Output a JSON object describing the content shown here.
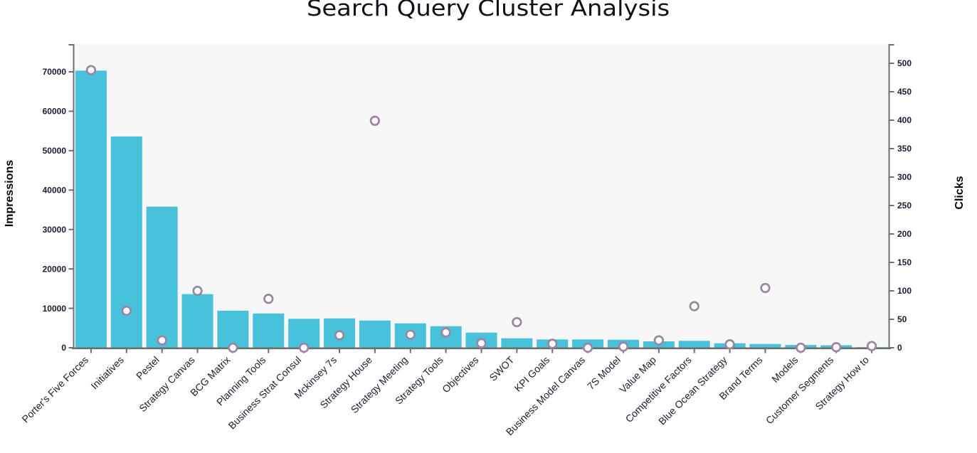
{
  "title": "Search Query Cluster Analysis",
  "colors": {
    "bar": "#48c1da",
    "marker_stroke": "#9d85a2",
    "marker_fill": "#ffffff",
    "plot_bg": "#f7f7f7",
    "axis": "#6f6f6f",
    "tick_label": "#1c1c30"
  },
  "chart_data": {
    "type": "bar",
    "title": "Search Query Cluster Analysis",
    "categories": [
      "Porter's Five Forces",
      "Initiatives",
      "Pestel",
      "Strategy Canvas",
      "BCG Matrix",
      "Planning Tools",
      "Business Strat Consul",
      "Mckinsey 7s",
      "Strategy House",
      "Strategy Meeting",
      "Strategy Tools",
      "Objectives",
      "SWOT",
      "KPI Goals",
      "Business Model Canvas",
      "7S Model",
      "Value Map",
      "Competitive Factors",
      "Blue Ocean Strategy",
      "Brand Terms",
      "Models",
      "Customer Segments",
      "Strategy How to"
    ],
    "series": [
      {
        "name": "Impressions",
        "type": "bar",
        "axis": "left",
        "values": [
          70300,
          53600,
          35800,
          13600,
          9400,
          8700,
          7340,
          7450,
          6900,
          6190,
          5470,
          3840,
          2400,
          2110,
          2110,
          2040,
          1625,
          1750,
          1135,
          950,
          700,
          620,
          150
        ]
      },
      {
        "name": "Clicks",
        "type": "scatter",
        "axis": "right",
        "values": [
          488,
          65,
          13,
          100,
          0,
          86,
          0,
          22,
          399,
          23,
          27,
          8,
          45,
          7,
          0,
          2,
          13,
          73,
          6,
          105,
          0,
          1,
          3
        ]
      }
    ],
    "left_axis": {
      "label": "Impressions",
      "min": 0,
      "max": 70000,
      "tick_step": 10000
    },
    "right_axis": {
      "label": "Clicks",
      "min": 0,
      "max": 500,
      "tick_step": 50
    },
    "grid": false,
    "legend": false
  }
}
